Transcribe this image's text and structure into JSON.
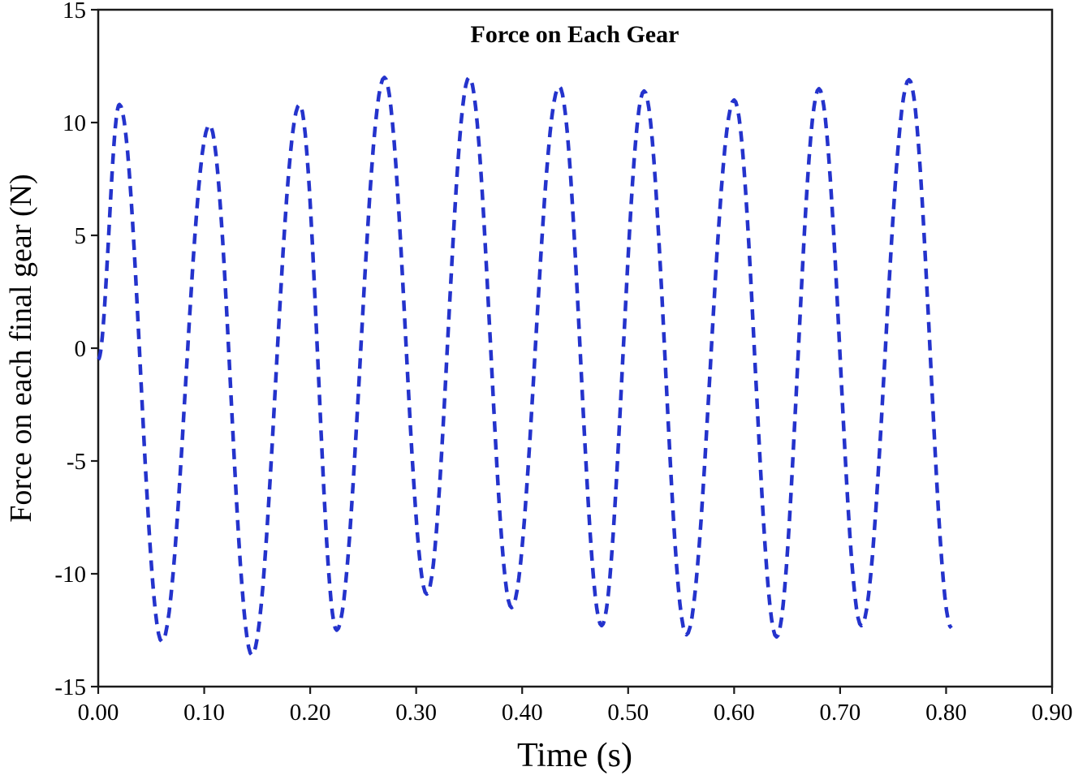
{
  "page": {
    "background_color": "#ffffff",
    "frame_color": "#1a1a1a"
  },
  "chart_data": {
    "type": "line",
    "title": "Force on Each Gear",
    "xlabel": "Time (s)",
    "ylabel": "Force on each final gear (N)",
    "xlim": [
      0.0,
      0.9
    ],
    "ylim": [
      -15,
      15
    ],
    "grid": false,
    "legend": "none",
    "x_tick_values": [
      0.0,
      0.1,
      0.2,
      0.3,
      0.4,
      0.5,
      0.6,
      0.7,
      0.8,
      0.9
    ],
    "x_tick_labels": [
      "0.00",
      "0.10",
      "0.20",
      "0.30",
      "0.40",
      "0.50",
      "0.60",
      "0.70",
      "0.80",
      "0.90"
    ],
    "y_tick_values": [
      -15,
      -10,
      -5,
      0,
      5,
      10,
      15
    ],
    "y_tick_labels": [
      "-15",
      "-10",
      "-5",
      "0",
      "5",
      "10",
      "15"
    ],
    "series": [
      {
        "name": "Force on each final gear",
        "style": {
          "color": "#2433cc",
          "dash": [
            13,
            9
          ],
          "width": 4.5,
          "interpolation": "cosine-through-extrema"
        },
        "points": [
          [
            0.0,
            -0.5
          ],
          [
            0.02,
            10.8
          ],
          [
            0.06,
            -13.0
          ],
          [
            0.105,
            9.9
          ],
          [
            0.145,
            -13.6
          ],
          [
            0.19,
            10.8
          ],
          [
            0.225,
            -12.5
          ],
          [
            0.27,
            12.0
          ],
          [
            0.31,
            -10.9
          ],
          [
            0.35,
            12.0
          ],
          [
            0.39,
            -11.5
          ],
          [
            0.435,
            11.6
          ],
          [
            0.475,
            -12.3
          ],
          [
            0.515,
            11.4
          ],
          [
            0.555,
            -12.7
          ],
          [
            0.6,
            11.0
          ],
          [
            0.64,
            -12.8
          ],
          [
            0.68,
            11.5
          ],
          [
            0.72,
            -12.3
          ],
          [
            0.765,
            11.9
          ],
          [
            0.805,
            -12.4
          ]
        ]
      }
    ]
  }
}
